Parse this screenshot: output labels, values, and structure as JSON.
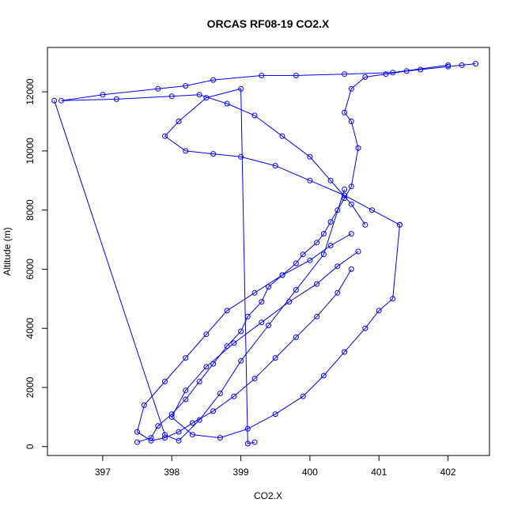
{
  "chart_data": {
    "type": "line",
    "markers": "open-circle",
    "title": "ORCAS RF08-19 CO2.X",
    "xlabel": "CO2.X",
    "ylabel": "Altitude (m)",
    "xlim": [
      396.2,
      402.6
    ],
    "ylim": [
      -300,
      13500
    ],
    "xticks": [
      397,
      398,
      399,
      400,
      401,
      402
    ],
    "yticks": [
      0,
      2000,
      4000,
      6000,
      8000,
      10000,
      12000
    ],
    "grid": false,
    "line_color": "#0000ff",
    "series": [
      {
        "x": [
          397.5,
          397.7,
          397.8,
          398.0,
          398.2,
          398.4,
          398.6,
          398.8,
          399.0,
          399.1,
          399.3,
          399.4,
          399.6,
          399.8,
          399.9,
          400.1,
          400.2,
          400.3,
          400.4,
          400.5,
          400.6,
          400.7,
          400.6,
          400.5,
          400.6,
          400.8,
          401.1,
          401.4,
          401.6,
          402.0,
          402.2,
          402.4
        ],
        "y": [
          150,
          300,
          700,
          1100,
          1600,
          2200,
          2800,
          3400,
          3900,
          4400,
          4900,
          5400,
          5800,
          6200,
          6500,
          6900,
          7200,
          7600,
          8000,
          8400,
          8800,
          10100,
          11000,
          11300,
          12100,
          12500,
          12600,
          12700,
          12750,
          12850,
          12900,
          12950
        ]
      },
      {
        "x": [
          402.0,
          401.2,
          400.5,
          399.8,
          399.3,
          398.6,
          398.2,
          397.8,
          397.0,
          396.4,
          397.2,
          398.0,
          398.4,
          398.8,
          399.2,
          399.6,
          400.0,
          400.3,
          400.6,
          400.8
        ],
        "y": [
          12900,
          12650,
          12600,
          12550,
          12550,
          12400,
          12200,
          12100,
          11900,
          11700,
          11750,
          11850,
          11900,
          11600,
          11200,
          10500,
          9800,
          9000,
          8200,
          7500
        ]
      },
      {
        "x": [
          400.6,
          400.3,
          400.0,
          399.6,
          399.2,
          398.8,
          398.5,
          398.2,
          397.9,
          397.6,
          397.5,
          397.7,
          397.9,
          398.1,
          398.3,
          398.6,
          398.9,
          399.2,
          399.5,
          399.8,
          400.1,
          400.4,
          400.6
        ],
        "y": [
          7200,
          6800,
          6300,
          5800,
          5200,
          4600,
          3800,
          3000,
          2200,
          1400,
          500,
          200,
          300,
          500,
          800,
          1200,
          1700,
          2300,
          3000,
          3700,
          4400,
          5200,
          6000
        ]
      },
      {
        "x": [
          400.7,
          400.4,
          400.1,
          399.7,
          399.3,
          398.9,
          398.5,
          398.2,
          398.0,
          398.3,
          398.7,
          399.1,
          399.5,
          399.9,
          400.2,
          400.5,
          400.8,
          401.0,
          401.2,
          401.3
        ],
        "y": [
          6600,
          6100,
          5500,
          4900,
          4200,
          3500,
          2700,
          1900,
          1000,
          400,
          300,
          600,
          1100,
          1700,
          2400,
          3200,
          4000,
          4600,
          5000,
          7500
        ]
      },
      {
        "x": [
          401.3,
          400.9,
          400.5,
          400.0,
          399.5,
          399.0,
          398.6,
          398.2,
          397.9,
          398.1,
          398.5,
          399.0,
          399.1,
          399.2
        ],
        "y": [
          7500,
          8000,
          8500,
          9000,
          9500,
          9800,
          9900,
          10000,
          10500,
          11000,
          11800,
          12100,
          100,
          150
        ]
      },
      {
        "x": [
          396.3,
          397.9,
          398.1,
          398.4,
          398.7,
          399.0,
          399.4,
          399.8,
          400.2,
          400.5
        ],
        "y": [
          11700,
          400,
          200,
          900,
          1800,
          2900,
          4100,
          5300,
          6500,
          8700
        ]
      }
    ]
  }
}
